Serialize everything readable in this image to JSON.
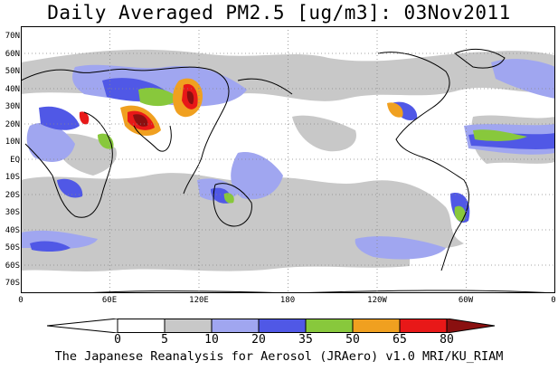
{
  "title": "Daily Averaged PM2.5 [ug/m3]: 03Nov2011",
  "credit": "The Japanese Reanalysis for Aerosol (JRAero) v1.0 MRI/KU_RIAM",
  "lat_labels": [
    "70N",
    "60N",
    "50N",
    "40N",
    "30N",
    "20N",
    "10N",
    "EQ",
    "10S",
    "20S",
    "30S",
    "40S",
    "50S",
    "60S",
    "70S"
  ],
  "lon_labels": [
    "0",
    "60E",
    "120E",
    "180",
    "120W",
    "60W",
    "0"
  ],
  "colorbar": {
    "labels": [
      "0",
      "5",
      "10",
      "20",
      "35",
      "50",
      "65",
      "80"
    ],
    "colors": [
      "#ffffff",
      "#c8c8c8",
      "#a0a6f0",
      "#5058e6",
      "#88c83c",
      "#f0a020",
      "#e81818",
      "#8a1010"
    ]
  },
  "map_colors": {
    "ocean": "#ffffff",
    "coast": "#000000",
    "grid": "#888888"
  }
}
